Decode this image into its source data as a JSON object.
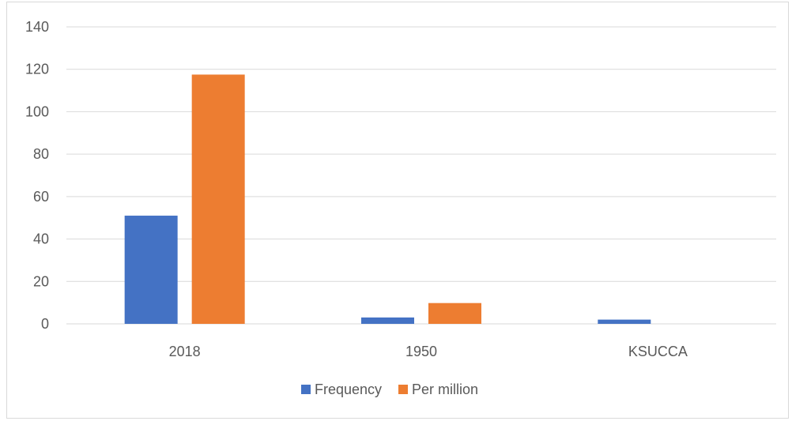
{
  "chart_data": {
    "type": "bar",
    "categories": [
      "2018",
      "1950",
      "KSUCCA"
    ],
    "series": [
      {
        "name": "Frequency",
        "values": [
          51,
          3,
          2
        ],
        "color": "#4472c4"
      },
      {
        "name": "Per million",
        "values": [
          117.5,
          9.8,
          0
        ],
        "color": "#ed7d31"
      }
    ],
    "ylim": [
      0,
      140
    ],
    "yticks": [
      0,
      20,
      40,
      60,
      80,
      100,
      120,
      140
    ],
    "grid": true,
    "legend": "bottom",
    "title": "",
    "xlabel": "",
    "ylabel": ""
  },
  "colors": {
    "gridline": "#d9d9d9",
    "axis_text": "#595959"
  }
}
